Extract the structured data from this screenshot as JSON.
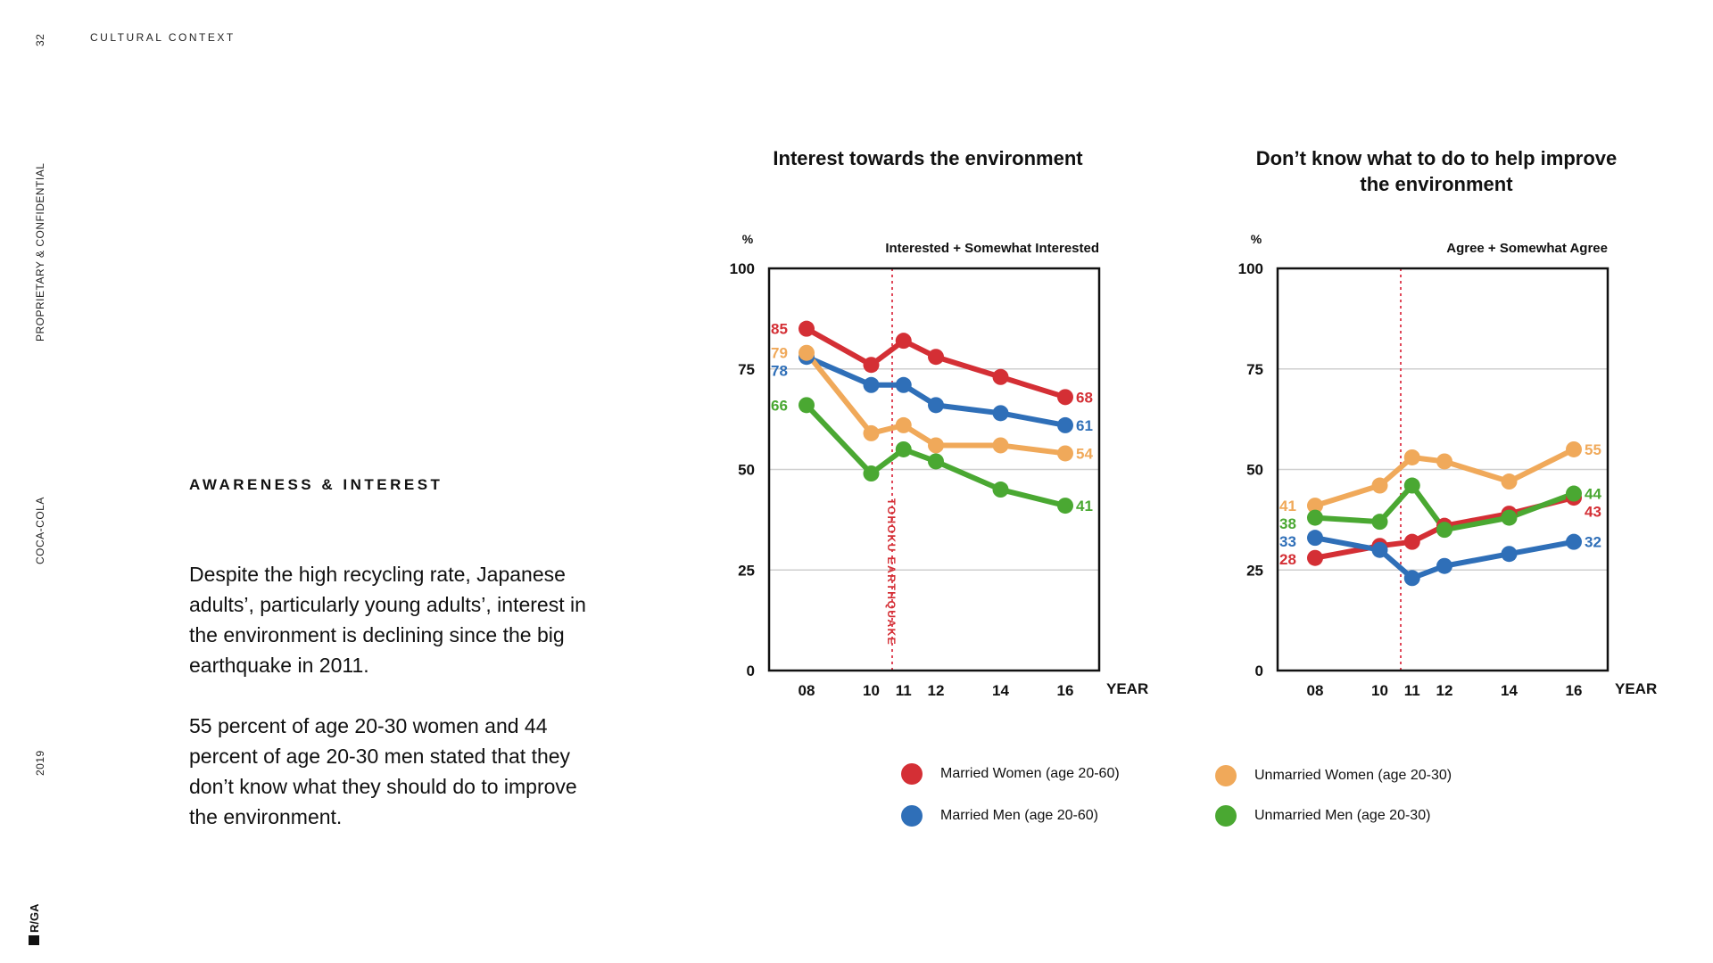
{
  "meta": {
    "page_number": "32",
    "section": "CULTURAL CONTEXT",
    "confidential": "PROPRIETARY & CONFIDENTIAL",
    "client": "COCA-COLA",
    "year": "2019",
    "brand": "R/GA"
  },
  "text": {
    "heading": "AWARENESS & INTEREST",
    "paragraph1": "Despite the high recycling rate, Japanese adults’, particularly young adults’, interest in the environment is declining since the big earthquake in 2011.",
    "paragraph2": "55 percent of age 20-30 women and 44 percent of age 20-30 men stated that they don’t know what they should do to improve the environment."
  },
  "legend": {
    "items": [
      {
        "label": "Married Women (age 20-60)",
        "color": "#d42f35"
      },
      {
        "label": "Married Men (age 20-60)",
        "color": "#2f6fb8"
      },
      {
        "label": "Unmarried Women (age 20-30)",
        "color": "#f0a95a"
      },
      {
        "label": "Unmarried Men (age 20-30)",
        "color": "#4aa832"
      }
    ]
  },
  "chart_data": [
    {
      "type": "line",
      "title": "Interest towards the environment",
      "subtitle": "Interested + Somewhat Interested",
      "ylabel": "%",
      "xlabel": "YEAR",
      "ylim": [
        0,
        100
      ],
      "yticks": [
        0,
        25,
        50,
        75,
        100
      ],
      "x": [
        "08",
        "10",
        "11",
        "12",
        "14",
        "16"
      ],
      "annotation": "TOHOKU EARTHQUAKE",
      "grid": true,
      "series": [
        {
          "name": "Married Women (age 20-60)",
          "color": "#d42f35",
          "values": [
            85,
            76,
            82,
            78,
            73,
            68
          ],
          "start_label": "85",
          "end_label": "68"
        },
        {
          "name": "Married Men (age 20-60)",
          "color": "#2f6fb8",
          "values": [
            78,
            71,
            71,
            66,
            64,
            61
          ],
          "start_label": "78",
          "end_label": "61"
        },
        {
          "name": "Unmarried Women (age 20-30)",
          "color": "#f0a95a",
          "values": [
            79,
            59,
            61,
            56,
            56,
            54
          ],
          "start_label": "79",
          "end_label": "54"
        },
        {
          "name": "Unmarried Men (age 20-30)",
          "color": "#4aa832",
          "values": [
            66,
            49,
            55,
            52,
            45,
            41
          ],
          "start_label": "66",
          "end_label": "41"
        }
      ]
    },
    {
      "type": "line",
      "title": "Don’t know what to do to help improve the environment",
      "subtitle": "Agree + Somewhat Agree",
      "ylabel": "%",
      "xlabel": "YEAR",
      "ylim": [
        0,
        100
      ],
      "yticks": [
        0,
        25,
        50,
        75,
        100
      ],
      "x": [
        "08",
        "10",
        "11",
        "12",
        "14",
        "16"
      ],
      "grid": true,
      "series": [
        {
          "name": "Married Women (age 20-60)",
          "color": "#d42f35",
          "values": [
            28,
            31,
            32,
            36,
            39,
            43
          ],
          "start_label": "28",
          "end_label": "43"
        },
        {
          "name": "Married Men (age 20-60)",
          "color": "#2f6fb8",
          "values": [
            33,
            30,
            23,
            26,
            29,
            32
          ],
          "start_label": "33",
          "end_label": "32"
        },
        {
          "name": "Unmarried Women (age 20-30)",
          "color": "#f0a95a",
          "values": [
            41,
            46,
            53,
            52,
            47,
            55
          ],
          "start_label": "41",
          "end_label": "55"
        },
        {
          "name": "Unmarried Men (age 20-30)",
          "color": "#4aa832",
          "values": [
            38,
            37,
            46,
            35,
            38,
            44
          ],
          "start_label": "38",
          "end_label": "44"
        }
      ]
    }
  ]
}
